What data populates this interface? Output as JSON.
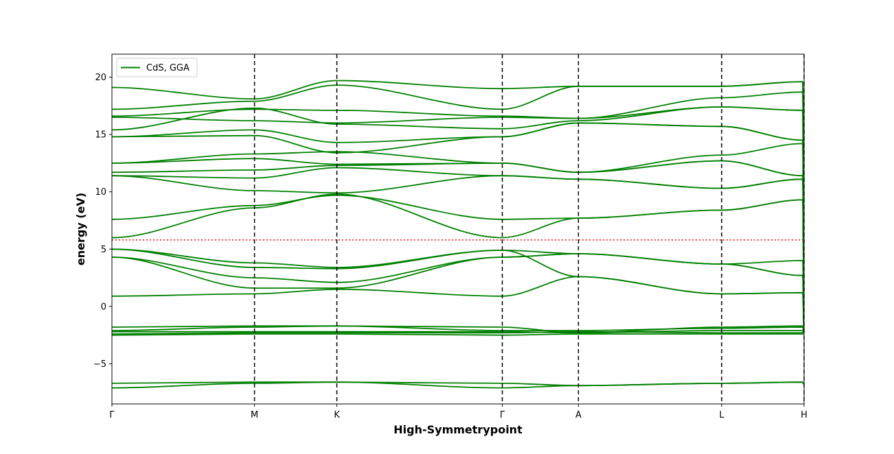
{
  "chart_data": {
    "type": "line",
    "title": "",
    "xlabel": "High-Symmetrypoint",
    "ylabel": "energy (eV)",
    "ylim": [
      -8.5,
      22
    ],
    "xlim": [
      0,
      1
    ],
    "yticks": [
      -5,
      0,
      5,
      10,
      15,
      20
    ],
    "ytick_labels": [
      "−5",
      "0",
      "5",
      "10",
      "15",
      "20"
    ],
    "kpoints": [
      {
        "label": "Γ",
        "x": 0.0
      },
      {
        "label": "M",
        "x": 0.206
      },
      {
        "label": "K",
        "x": 0.325
      },
      {
        "label": "Γ",
        "x": 0.564
      },
      {
        "label": "A",
        "x": 0.674
      },
      {
        "label": "L",
        "x": 0.881
      },
      {
        "label": "H",
        "x": 1.0
      }
    ],
    "fermi_level": 5.8,
    "fermi_color": "#ff0000",
    "band_color": "#008000",
    "legend": {
      "label": "CdS, GGA",
      "position": "top-left"
    },
    "bands": [
      {
        "x": [
          0,
          0.206,
          0.325,
          0.564,
          0.674,
          0.881,
          0.998,
          1.0
        ],
        "y": [
          -7.1,
          -6.7,
          -6.6,
          -7.1,
          -6.9,
          -6.7,
          -6.6,
          -6.8
        ]
      },
      {
        "x": [
          0,
          0.206,
          0.325,
          0.564,
          0.674,
          0.881,
          0.998,
          1.0
        ],
        "y": [
          -6.7,
          -6.6,
          -6.6,
          -6.7,
          -6.9,
          -6.7,
          -6.6,
          -6.8
        ]
      },
      {
        "x": [
          0,
          0.206,
          0.325,
          0.564,
          0.674,
          0.881,
          0.998,
          1.0
        ],
        "y": [
          -2.5,
          -2.4,
          -2.4,
          -2.5,
          -2.4,
          -2.4,
          -2.4,
          -2.3
        ]
      },
      {
        "x": [
          0,
          0.206,
          0.325,
          0.564,
          0.674,
          0.881,
          0.998,
          1.0
        ],
        "y": [
          -2.4,
          -2.3,
          -2.3,
          -2.3,
          -2.2,
          -2.3,
          -2.3,
          -2.3
        ]
      },
      {
        "x": [
          0,
          0.206,
          0.325,
          0.564,
          0.674,
          0.881,
          0.998,
          1.0
        ],
        "y": [
          -2.2,
          -2.2,
          -2.2,
          -2.2,
          -2.3,
          -2.1,
          -2.1,
          -2.3
        ]
      },
      {
        "x": [
          0,
          0.206,
          0.325,
          0.564,
          0.674,
          0.881,
          0.998,
          1.0
        ],
        "y": [
          -2.1,
          -1.8,
          -1.7,
          -2.1,
          -2.1,
          -1.9,
          -1.8,
          -2.3
        ]
      },
      {
        "x": [
          0,
          0.206,
          0.325,
          0.564,
          0.674,
          0.881,
          0.998,
          1.0
        ],
        "y": [
          -1.8,
          -1.7,
          -1.7,
          -1.8,
          -2.3,
          -1.8,
          -1.7,
          -2.3
        ]
      },
      {
        "x": [
          0,
          0.206,
          0.325,
          0.564,
          0.674,
          0.881,
          0.998,
          1.0
        ],
        "y": [
          0.9,
          1.1,
          1.5,
          0.9,
          2.6,
          1.1,
          1.2,
          -2.3
        ]
      },
      {
        "x": [
          0,
          0.206,
          0.325,
          0.564,
          0.674,
          0.881,
          0.998,
          1.0
        ],
        "y": [
          4.3,
          1.6,
          1.6,
          4.3,
          4.6,
          3.7,
          2.7,
          -2.3
        ]
      },
      {
        "x": [
          0,
          0.206,
          0.325,
          0.564,
          0.674,
          0.881,
          0.998,
          1.0
        ],
        "y": [
          4.3,
          2.5,
          2.1,
          4.3,
          4.6,
          3.7,
          2.7,
          -2.3
        ]
      },
      {
        "x": [
          0,
          0.206,
          0.325,
          0.564,
          0.674,
          0.881,
          0.998,
          1.0
        ],
        "y": [
          5.0,
          3.4,
          3.3,
          4.9,
          4.6,
          3.7,
          4.0,
          -2.3
        ]
      },
      {
        "x": [
          0,
          0.206,
          0.325,
          0.564,
          0.674,
          0.881,
          0.998,
          1.0
        ],
        "y": [
          5.0,
          3.8,
          3.4,
          4.9,
          2.6,
          1.1,
          1.2,
          -2.3
        ]
      },
      {
        "x": [
          0,
          0.206,
          0.325,
          0.564,
          0.674,
          0.881,
          0.998,
          1.0
        ],
        "y": [
          6.0,
          8.6,
          9.8,
          6.0,
          7.7,
          8.4,
          9.3,
          -2.3
        ]
      },
      {
        "x": [
          0,
          0.206,
          0.325,
          0.564,
          0.674,
          0.881,
          0.998,
          1.0
        ],
        "y": [
          7.6,
          8.8,
          9.7,
          7.6,
          7.7,
          8.4,
          9.3,
          -2.3
        ]
      },
      {
        "x": [
          0,
          0.206,
          0.325,
          0.564,
          0.674,
          0.881,
          0.998,
          1.0
        ],
        "y": [
          11.4,
          10.1,
          9.9,
          11.4,
          11.1,
          10.3,
          11.1,
          -2.3
        ]
      },
      {
        "x": [
          0,
          0.206,
          0.325,
          0.564,
          0.674,
          0.881,
          0.998,
          1.0
        ],
        "y": [
          11.4,
          11.2,
          12.1,
          11.4,
          11.1,
          10.3,
          11.1,
          -2.3
        ]
      },
      {
        "x": [
          0,
          0.206,
          0.325,
          0.564,
          0.674,
          0.881,
          0.998,
          1.0
        ],
        "y": [
          11.7,
          11.9,
          12.3,
          12.5,
          11.7,
          12.7,
          11.4,
          -2.3
        ]
      },
      {
        "x": [
          0,
          0.206,
          0.325,
          0.564,
          0.674,
          0.881,
          0.998,
          1.0
        ],
        "y": [
          12.5,
          12.9,
          12.4,
          12.5,
          11.7,
          12.7,
          11.4,
          -2.3
        ]
      },
      {
        "x": [
          0,
          0.206,
          0.325,
          0.564,
          0.674,
          0.881,
          0.998,
          1.0
        ],
        "y": [
          12.5,
          13.3,
          13.5,
          12.5,
          11.7,
          13.2,
          14.2,
          -2.3
        ]
      },
      {
        "x": [
          0,
          0.206,
          0.325,
          0.564,
          0.674,
          0.881,
          0.998,
          1.0
        ],
        "y": [
          14.8,
          14.9,
          13.4,
          14.8,
          16.0,
          15.7,
          14.5,
          -2.3
        ]
      },
      {
        "x": [
          0,
          0.206,
          0.325,
          0.564,
          0.674,
          0.881,
          0.998,
          1.0
        ],
        "y": [
          14.8,
          15.4,
          14.3,
          14.8,
          16.0,
          15.7,
          14.5,
          -2.3
        ]
      },
      {
        "x": [
          0,
          0.206,
          0.325,
          0.564,
          0.674,
          0.881,
          0.998,
          1.0
        ],
        "y": [
          15.4,
          17.3,
          15.9,
          15.5,
          16.2,
          17.4,
          17.1,
          -2.3
        ]
      },
      {
        "x": [
          0,
          0.206,
          0.325,
          0.564,
          0.674,
          0.881,
          0.998,
          1.0
        ],
        "y": [
          16.5,
          16.2,
          16.0,
          16.5,
          16.4,
          17.4,
          17.1,
          -2.3
        ]
      },
      {
        "x": [
          0,
          0.206,
          0.325,
          0.564,
          0.674,
          0.881,
          0.998,
          1.0
        ],
        "y": [
          16.6,
          17.2,
          17.1,
          16.6,
          16.4,
          18.2,
          18.7,
          -2.3
        ]
      },
      {
        "x": [
          0,
          0.206,
          0.325,
          0.564,
          0.674,
          0.881,
          0.998,
          1.0
        ],
        "y": [
          17.2,
          17.9,
          19.3,
          17.2,
          19.2,
          19.2,
          19.6,
          -2.3
        ]
      },
      {
        "x": [
          0,
          0.206,
          0.325,
          0.564,
          0.674,
          0.881,
          0.998,
          1.0
        ],
        "y": [
          19.1,
          18.1,
          19.7,
          19.0,
          19.2,
          19.2,
          19.6,
          -2.3
        ]
      }
    ]
  }
}
